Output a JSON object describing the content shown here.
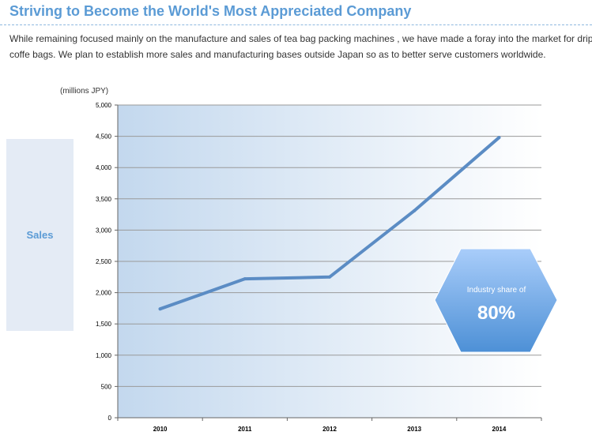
{
  "header": {
    "title": "Striving to Become the World's Most Appreciated Company",
    "description": "While remaining focused mainly on the manufacture and sales of tea bag packing machines , we have made a foray into the market for drip\ncoffe bags. We plan to establish more sales and manufacturing bases outside Japan so as to better serve customers worldwide."
  },
  "side_panel": {
    "label": "Sales"
  },
  "colors": {
    "accent": "#5b9bd5",
    "line": "#5b8cc4",
    "panel_bg": "#e4ebf5",
    "plot_gradient_start": "#c3d8ee",
    "plot_gradient_end": "#ffffff",
    "badge_top": "#a9cdfa",
    "badge_bottom": "#4d90d6"
  },
  "chart_data": {
    "type": "line",
    "unit_label": "(millions JPY)",
    "categories": [
      "2010",
      "2011",
      "2012",
      "2013",
      "2014"
    ],
    "series": [
      {
        "values": [
          1740,
          2220,
          2250,
          3310,
          4480
        ]
      }
    ],
    "yticks": [
      "0",
      "500",
      "1,000",
      "1,500",
      "2,000",
      "2,500",
      "3,000",
      "3,500",
      "4,000",
      "4,500",
      "5,000"
    ],
    "ylim": [
      0,
      5000
    ],
    "grid": true,
    "annotation": {
      "label": "Industry share of",
      "value": "80%"
    }
  }
}
